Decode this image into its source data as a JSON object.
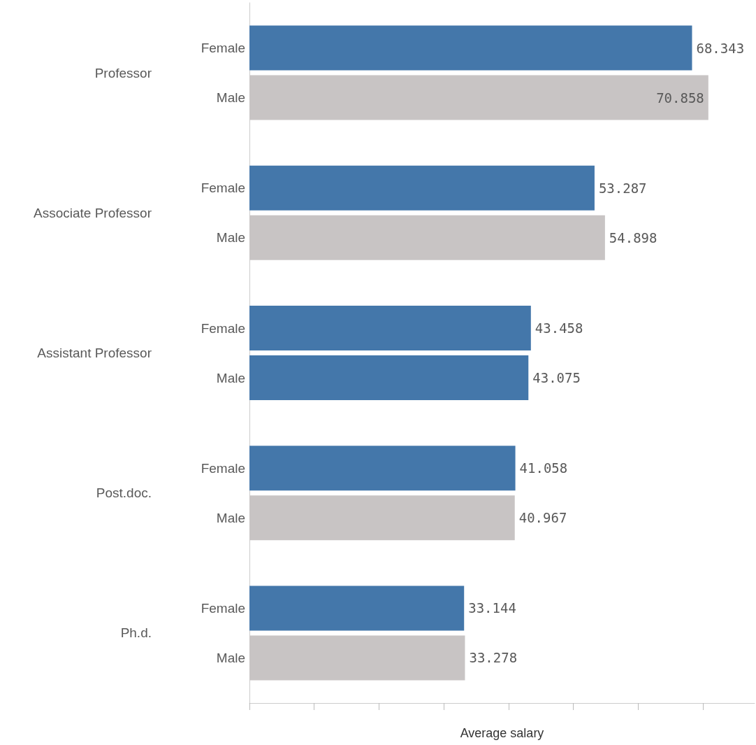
{
  "chart_data": {
    "type": "bar",
    "orientation": "horizontal",
    "xlabel": "Average salary",
    "categories": [
      "Professor",
      "Associate Professor",
      "Assistant Professor",
      "Post.doc.",
      "Ph.d."
    ],
    "series": [
      {
        "name": "Female",
        "color": "#4477aa",
        "values": [
          68.343,
          53.287,
          43.458,
          41.058,
          33.144
        ]
      },
      {
        "name": "Male",
        "color": "#c8c4c4",
        "colors": [
          null,
          null,
          "#4477aa",
          null,
          null
        ],
        "values": [
          70.858,
          54.898,
          43.075,
          40.967,
          33.278
        ]
      }
    ],
    "xlim": [
      0,
      78
    ],
    "xticks": [
      {
        "value": 0,
        "label": null
      },
      {
        "value": 10,
        "label": null
      },
      {
        "value": 20,
        "label": null
      },
      {
        "value": 30,
        "label": null
      },
      {
        "value": 40,
        "label": null
      },
      {
        "value": 50,
        "label": null
      },
      {
        "value": 60,
        "label": null
      },
      {
        "value": 70,
        "label": null
      }
    ],
    "tick_labels": "y",
    "data_labels": true,
    "grid": false,
    "legend": false
  }
}
